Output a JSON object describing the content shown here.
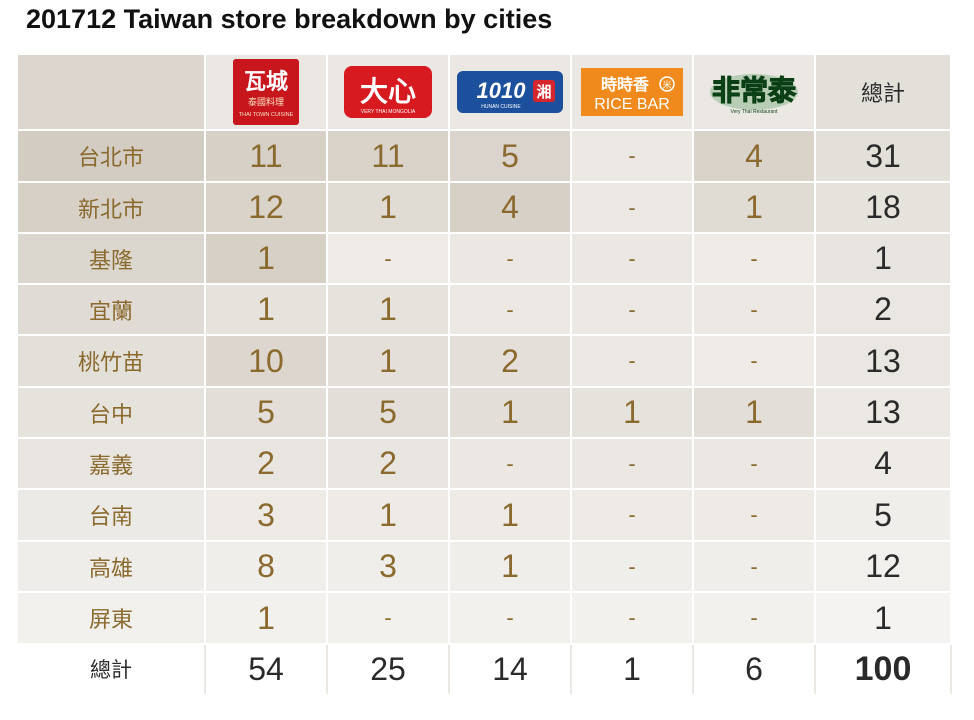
{
  "title": "201712 Taiwan store breakdown by cities",
  "brand_logos": [
    {
      "name": "Thai Town Cuisine",
      "icon": "thai-town-cuisine-logo",
      "color": "#c8161d",
      "glyph": "瓦城",
      "subtitle": "泰國料理"
    },
    {
      "name": "Very Thai Mongolia",
      "icon": "daxin-logo",
      "color": "#d71920",
      "glyph": "大心"
    },
    {
      "name": "1010 Hunan Cuisine",
      "icon": "1010-hunan-logo",
      "color": "#1c4f9c",
      "glyph": "1010",
      "badge": "湘"
    },
    {
      "name": "時時香 RICE BAR",
      "icon": "rice-bar-logo",
      "color": "#f08a1c",
      "glyph": "時時香",
      "subtitle": "RICE BAR"
    },
    {
      "name": "Very Thai Restaurant",
      "icon": "very-thai-logo",
      "color": "#1a7a2a",
      "glyph": "非常泰"
    }
  ],
  "total_header": "總計",
  "chart_data": {
    "type": "table",
    "title": "201712 Taiwan store breakdown by cities",
    "columns": [
      "瓦城",
      "大心",
      "1010湘",
      "時時香 RICE BAR",
      "非常泰",
      "總計"
    ],
    "rows": [
      {
        "city": "台北市",
        "values": [
          "11",
          "11",
          "5",
          "-",
          "4"
        ],
        "total": "31"
      },
      {
        "city": "新北市",
        "values": [
          "12",
          "1",
          "4",
          "-",
          "1"
        ],
        "total": "18"
      },
      {
        "city": "基隆",
        "values": [
          "1",
          "-",
          "-",
          "-",
          "-"
        ],
        "total": "1"
      },
      {
        "city": "宜蘭",
        "values": [
          "1",
          "1",
          "-",
          "-",
          "-"
        ],
        "total": "2"
      },
      {
        "city": "桃竹苗",
        "values": [
          "10",
          "1",
          "2",
          "-",
          "-"
        ],
        "total": "13"
      },
      {
        "city": "台中",
        "values": [
          "5",
          "5",
          "1",
          "1",
          "1"
        ],
        "total": "13"
      },
      {
        "city": "嘉義",
        "values": [
          "2",
          "2",
          "-",
          "-",
          "-"
        ],
        "total": "4"
      },
      {
        "city": "台南",
        "values": [
          "3",
          "1",
          "1",
          "-",
          "-"
        ],
        "total": "5"
      },
      {
        "city": "高雄",
        "values": [
          "8",
          "3",
          "1",
          "-",
          "-"
        ],
        "total": "12"
      },
      {
        "city": "屏東",
        "values": [
          "1",
          "-",
          "-",
          "-",
          "-"
        ],
        "total": "1"
      }
    ],
    "total_row": {
      "label": "總計",
      "values": [
        "54",
        "25",
        "14",
        "1",
        "6"
      ],
      "total": "100"
    }
  }
}
